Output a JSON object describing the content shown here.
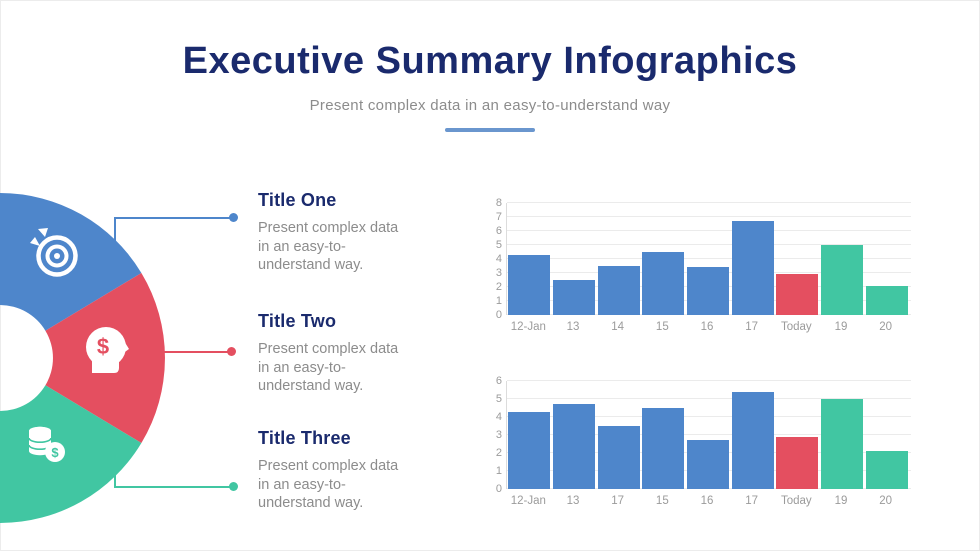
{
  "header": {
    "title": "Executive Summary Infographics",
    "subtitle": "Present complex data in an easy-to-understand way"
  },
  "sections": [
    {
      "title": "Title One",
      "description": "Present complex data\nin an easy-to-\nunderstand way."
    },
    {
      "title": "Title Two",
      "description": "Present complex data\nin an easy-to-\nunderstand way."
    },
    {
      "title": "Title Three",
      "description": "Present complex data\nin an easy-to-\nunderstand way."
    }
  ],
  "donut": {
    "type": "half-donut",
    "segments": [
      {
        "name": "target",
        "color": "#4E86CB",
        "icon": "target-icon"
      },
      {
        "name": "money-head",
        "color": "#E44F60",
        "icon": "head-dollar-icon",
        "glyph": "$"
      },
      {
        "name": "coins",
        "color": "#41C6A2",
        "icon": "coins-icon",
        "glyph": "$"
      }
    ]
  },
  "colors": {
    "navy": "#1A2A6D",
    "blue": "#4E86CB",
    "red": "#E44F60",
    "green": "#41C6A2",
    "text_gray": "#8C8C8C",
    "axis_gray": "#9B9B9B",
    "grid": "#EBEBEB",
    "divider_blue": "#6A96CE"
  },
  "chart_data": [
    {
      "type": "bar",
      "title": "",
      "xlabel": "",
      "ylabel": "",
      "categories": [
        "12-Jan",
        "13",
        "14",
        "15",
        "16",
        "17",
        "Today",
        "19",
        "20"
      ],
      "values": [
        4.3,
        2.5,
        3.5,
        4.5,
        3.4,
        6.7,
        2.9,
        5.0,
        2.1
      ],
      "bar_colors": [
        "#4E86CB",
        "#4E86CB",
        "#4E86CB",
        "#4E86CB",
        "#4E86CB",
        "#4E86CB",
        "#E44F60",
        "#41C6A2",
        "#41C6A2"
      ],
      "ylim": [
        0,
        8
      ],
      "ytick_step": 1,
      "grid": true,
      "legend": "none"
    },
    {
      "type": "bar",
      "title": "",
      "xlabel": "",
      "ylabel": "",
      "categories": [
        "12-Jan",
        "13",
        "17",
        "15",
        "16",
        "17",
        "Today",
        "19",
        "20"
      ],
      "values": [
        4.3,
        4.7,
        3.5,
        4.5,
        2.7,
        5.4,
        2.9,
        5.0,
        2.1
      ],
      "bar_colors": [
        "#4E86CB",
        "#4E86CB",
        "#4E86CB",
        "#4E86CB",
        "#4E86CB",
        "#4E86CB",
        "#E44F60",
        "#41C6A2",
        "#41C6A2"
      ],
      "ylim": [
        0,
        6
      ],
      "ytick_step": 1,
      "grid": true,
      "legend": "none"
    }
  ]
}
